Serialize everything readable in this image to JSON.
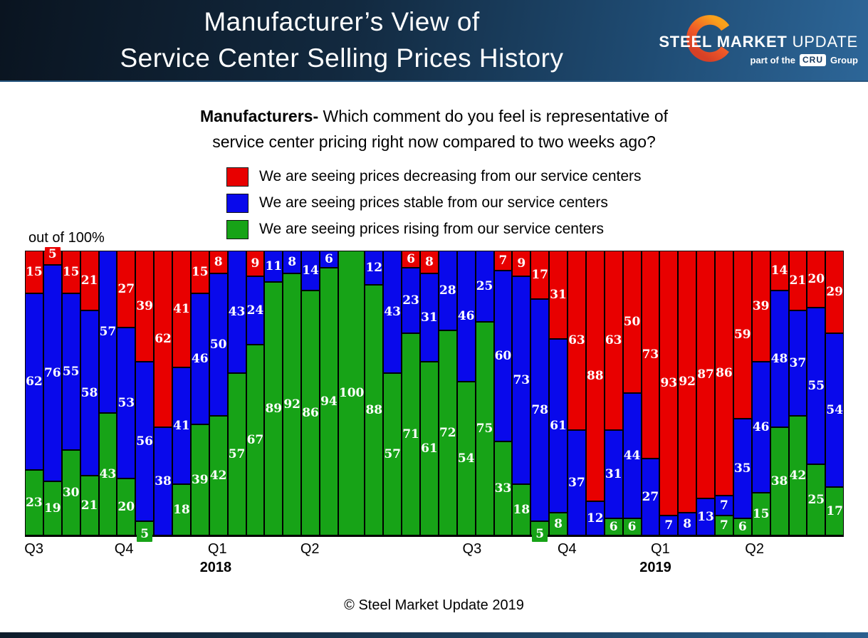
{
  "header": {
    "title_line1": "Manufacturer’s View of",
    "title_line2": "Service Center Selling Prices History",
    "logo": {
      "steel": "STEEL",
      "market": "MARKET",
      "update": "UPDATE",
      "tagline_prefix": "part of the",
      "cru": "CRU",
      "tagline_suffix": "Group"
    }
  },
  "question": {
    "bold": "Manufacturers-",
    "line1_rest": " Which comment do you feel is representative of",
    "line2": "service center pricing right now compared to two weeks ago?"
  },
  "legend": {
    "items": [
      {
        "label": "We are seeing prices decreasing from our service centers",
        "color": "#E80000"
      },
      {
        "label": "We are seeing prices stable from our service centers",
        "color": "#0909EB"
      },
      {
        "label": "We are seeing prices rising from our service centers",
        "color": "#17A317"
      }
    ]
  },
  "axis_note": "out of 100%",
  "footer": "© Steel Market Update 2019",
  "colors": {
    "header_gradient_left": "#0A1420",
    "header_gradient_right": "#2D6698",
    "bar_red": "#E80000",
    "bar_blue": "#0909EB",
    "bar_green": "#17A317"
  },
  "chart_data": {
    "type": "bar",
    "stacked": true,
    "percent_total": 100,
    "ylim": [
      0,
      100
    ],
    "bar_count": 44,
    "grid": false,
    "legend_position": "top",
    "stack_order_top_to_bottom": [
      "decreasing",
      "stable",
      "rising"
    ],
    "series": [
      {
        "name": "We are seeing prices decreasing from our service centers",
        "key": "decreasing",
        "color": "#E80000",
        "values": [
          15,
          5,
          15,
          21,
          0,
          27,
          39,
          62,
          41,
          15,
          8,
          0,
          9,
          0,
          0,
          0,
          0,
          0,
          0,
          0,
          6,
          8,
          0,
          0,
          0,
          7,
          9,
          17,
          31,
          63,
          88,
          63,
          50,
          73,
          93,
          92,
          87,
          86,
          59,
          39,
          14,
          21,
          20,
          29
        ]
      },
      {
        "name": "We are seeing prices stable from our service centers",
        "key": "stable",
        "color": "#0909EB",
        "values": [
          62,
          76,
          55,
          58,
          57,
          53,
          56,
          38,
          41,
          46,
          50,
          43,
          24,
          11,
          8,
          14,
          6,
          0,
          12,
          43,
          23,
          31,
          28,
          46,
          25,
          60,
          73,
          78,
          61,
          37,
          12,
          31,
          44,
          27,
          7,
          8,
          13,
          7,
          35,
          46,
          48,
          37,
          55,
          54
        ]
      },
      {
        "name": "We are seeing prices rising from our service centers",
        "key": "rising",
        "color": "#17A317",
        "values": [
          23,
          19,
          30,
          21,
          43,
          20,
          5,
          0,
          18,
          39,
          42,
          57,
          67,
          89,
          92,
          86,
          94,
          100,
          88,
          57,
          71,
          61,
          72,
          54,
          75,
          33,
          18,
          5,
          8,
          0,
          0,
          6,
          6,
          0,
          0,
          0,
          0,
          7,
          6,
          15,
          38,
          42,
          25,
          17
        ]
      }
    ],
    "x_ticks": [
      {
        "label": "Q3",
        "x_pct": 1.1
      },
      {
        "label": "Q4",
        "x_pct": 12.1
      },
      {
        "label": "Q1",
        "x_pct": 23.5
      },
      {
        "label": "Q2",
        "x_pct": 34.8
      },
      {
        "label": "Q3",
        "x_pct": 54.6
      },
      {
        "label": "Q4",
        "x_pct": 66.2
      },
      {
        "label": "Q1",
        "x_pct": 77.6
      },
      {
        "label": "Q2",
        "x_pct": 89.1
      }
    ],
    "year_labels": [
      {
        "label": "2018",
        "x_pct": 23.3
      },
      {
        "label": "2019",
        "x_pct": 77.0
      }
    ]
  }
}
